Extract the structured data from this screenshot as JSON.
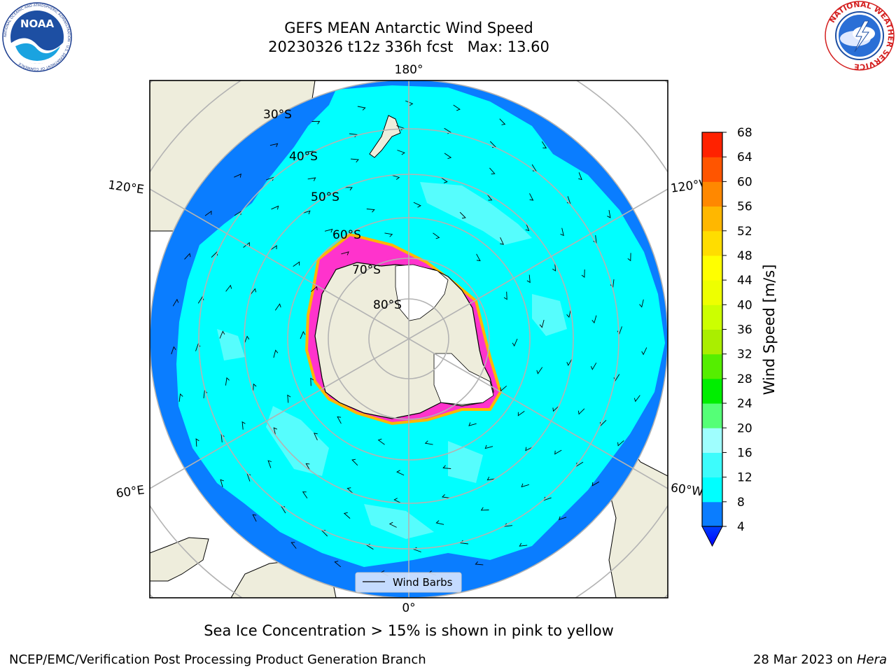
{
  "title": {
    "line1": "GEFS MEAN Antarctic Wind Speed",
    "line2": "20230326 t12z 336h fcst   Max: 13.60"
  },
  "logos": {
    "left": "NOAA",
    "left_ring_text": "NATIONAL OCEANIC AND ATMOSPHERIC ADMINISTRATION · U.S. DEPARTMENT OF COMMERCE",
    "right_ring_text": "NATIONAL WEATHER SERVICE"
  },
  "map": {
    "projection": "south-polar-stereographic",
    "lat_labels": [
      "30°S",
      "40°S",
      "50°S",
      "60°S",
      "70°S",
      "80°S"
    ],
    "lon_labels": {
      "top": "180°",
      "bottom": "0°",
      "upper_left": "120°E",
      "lower_left": "60°E",
      "upper_right": "120°W",
      "lower_right": "60°W"
    },
    "legend_label": "Wind Barbs",
    "colors": {
      "land": "#eeeddc",
      "ice_shelf": "#ffffff",
      "ocean_low": "#0a7dff",
      "ocean_mid": "#00ffff",
      "ocean_high": "#5ffdfd",
      "sea_ice": "#ff33cc",
      "sea_ice_edge": "#ffb700",
      "grid": "#b3b3b3"
    }
  },
  "colorbar": {
    "label": "Wind Speed [m/s]",
    "ticks": [
      4,
      8,
      12,
      16,
      20,
      24,
      28,
      32,
      36,
      40,
      44,
      48,
      52,
      56,
      60,
      64,
      68
    ],
    "colors": [
      "#0a7dff",
      "#00ffff",
      "#3dfcfc",
      "#9ffefe",
      "#55ff77",
      "#00ee00",
      "#55ee00",
      "#aaee00",
      "#ccff00",
      "#eeff00",
      "#ffff00",
      "#ffdd00",
      "#ffb700",
      "#ff8800",
      "#ff5500",
      "#ff2200",
      "#ff0000"
    ],
    "extend_color": "#0000ff"
  },
  "caption": "Sea Ice Concentration > 15% is shown in pink to yellow",
  "footer": {
    "left": "NCEP/EMC/Verification Post Processing Product Generation Branch",
    "right_date": "28 Mar 2023 on ",
    "right_machine": "Hera"
  }
}
